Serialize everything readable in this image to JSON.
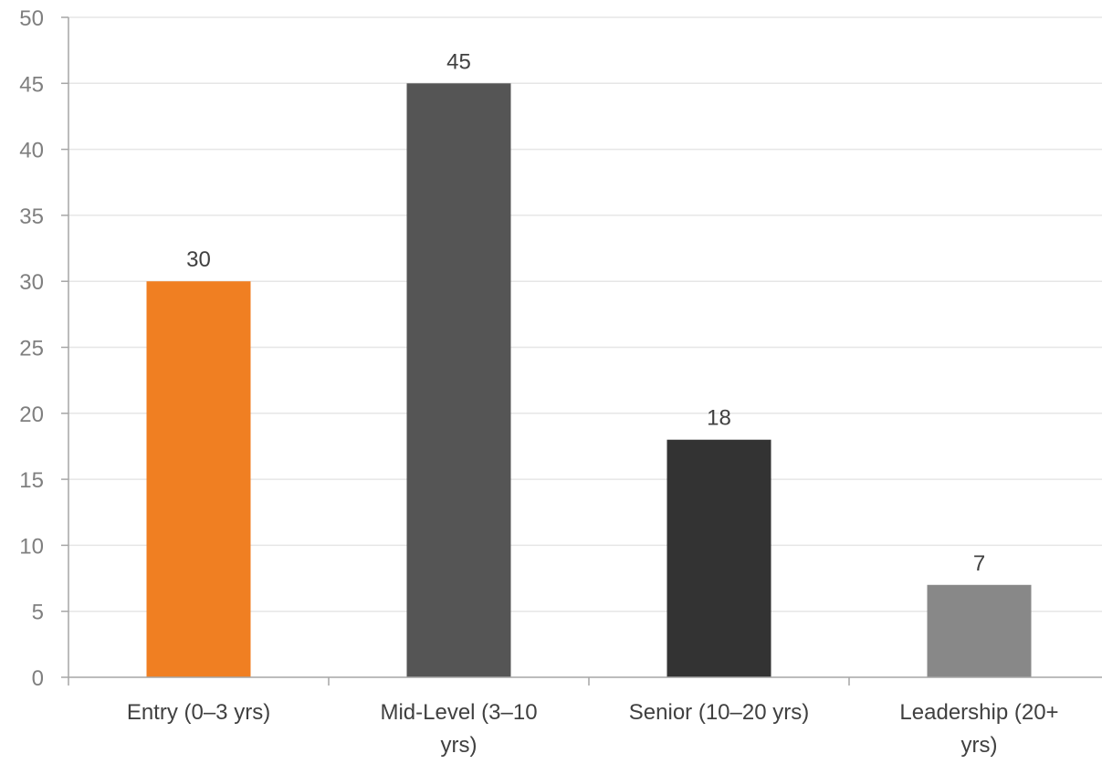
{
  "chart_data": {
    "type": "bar",
    "title": "",
    "xlabel": "",
    "ylabel": "",
    "categories": [
      "Entry (0–3 yrs)",
      "Mid-Level (3–10 yrs)",
      "Senior (10–20 yrs)",
      "Leadership (20+ yrs)"
    ],
    "category_lines": [
      [
        "Entry (0–3 yrs)"
      ],
      [
        "Mid-Level (3–10",
        "yrs)"
      ],
      [
        "Senior (10–20 yrs)"
      ],
      [
        "Leadership (20+",
        "yrs)"
      ]
    ],
    "values": [
      30,
      45,
      18,
      7
    ],
    "data_labels": [
      "30",
      "45",
      "18",
      "7"
    ],
    "bar_colors": [
      "#f07f22",
      "#555555",
      "#333333",
      "#888888"
    ],
    "ylim": [
      0,
      50
    ],
    "yticks": [
      0,
      5,
      10,
      15,
      20,
      25,
      30,
      35,
      40,
      45,
      50
    ],
    "ytick_labels": [
      "0",
      "5",
      "10",
      "15",
      "20",
      "25",
      "30",
      "35",
      "40",
      "45",
      "50"
    ],
    "grid": true,
    "legend": "none",
    "colors": {
      "grid": "#e6e6e6",
      "axis": "#a6a6a6",
      "tick_text": "#7f7f7f",
      "label_text": "#404040"
    }
  }
}
